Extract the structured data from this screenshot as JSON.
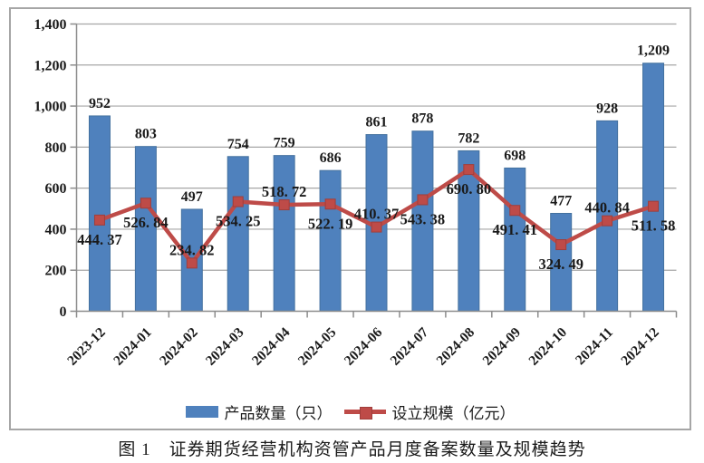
{
  "figure": {
    "caption": "图 1　证券期货经营机构资管产品月度备案数量及规模趋势"
  },
  "colors": {
    "bar": "#4F81BD",
    "bar_border": "#44719F",
    "line": "#BE4B48",
    "marker_border": "#A03E3B",
    "grid": "#A6A6A6",
    "axis": "#8C8C8C",
    "text": "#1A1A1A"
  },
  "chart_data": {
    "type": "bar+line",
    "title": "",
    "categories": [
      "2023-12",
      "2024-01",
      "2024-02",
      "2024-03",
      "2024-04",
      "2024-05",
      "2024-06",
      "2024-07",
      "2024-08",
      "2024-09",
      "2024-10",
      "2024-11",
      "2024-12"
    ],
    "series": [
      {
        "name": "产品数量（只）",
        "type": "bar",
        "values": [
          952,
          803,
          497,
          754,
          759,
          686,
          861,
          878,
          782,
          698,
          477,
          928,
          1209
        ],
        "labels": [
          "952",
          "803",
          "497",
          "754",
          "759",
          "686",
          "861",
          "878",
          "782",
          "698",
          "477",
          "928",
          "1,209"
        ]
      },
      {
        "name": "设立规模（亿元）",
        "type": "line",
        "values": [
          444.37,
          526.84,
          234.82,
          534.25,
          518.72,
          522.19,
          410.37,
          543.38,
          690.8,
          491.41,
          324.49,
          440.84,
          511.58
        ],
        "labels": [
          "444. 37",
          "526. 84",
          "234. 82",
          "534. 25",
          "518. 72",
          "522. 19",
          "410. 37",
          "543. 38",
          "690. 80",
          "491. 41",
          "324. 49",
          "440. 84",
          "511. 58"
        ],
        "label_positions": [
          "below",
          "below",
          "above",
          "below",
          "above",
          "below",
          "above",
          "below",
          "below",
          "below",
          "below",
          "above",
          "below"
        ]
      }
    ],
    "y_axis": {
      "min": 0,
      "max": 1400,
      "step": 200,
      "tick_labels": [
        "0",
        "200",
        "400",
        "600",
        "800",
        "1,000",
        "1,200",
        "1,400"
      ]
    },
    "grid": true,
    "legend_position": "bottom"
  }
}
